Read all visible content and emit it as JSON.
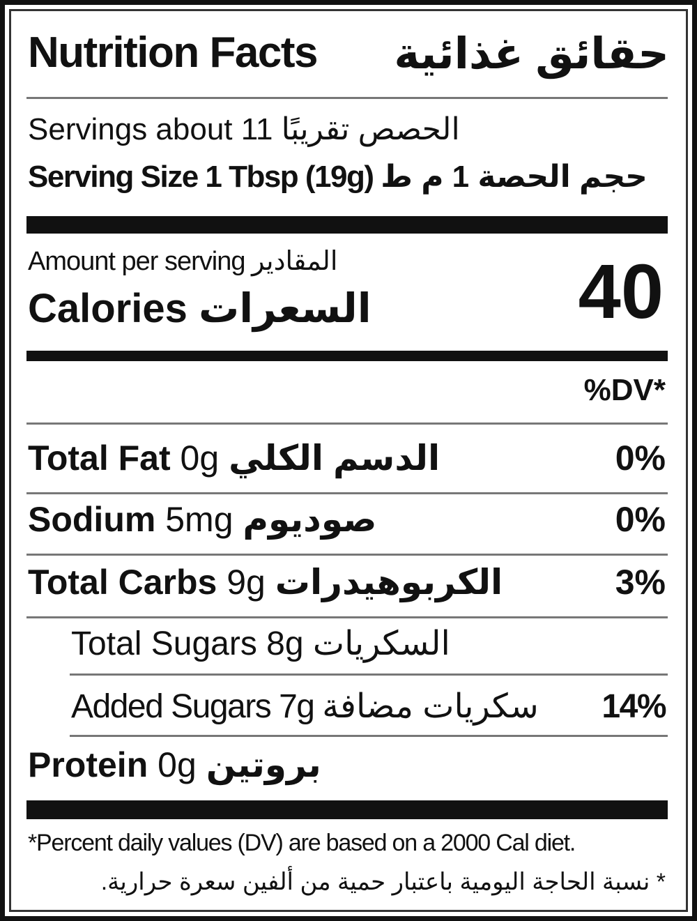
{
  "title": {
    "en": "Nutrition Facts",
    "ar": "حقائق غذائية"
  },
  "servings": {
    "en": "Servings about 11",
    "ar": "الحصص تقريبًا"
  },
  "serving_size": {
    "en": "Serving Size 1 Tbsp (19g)",
    "ar": "حجم الحصة 1 م ط"
  },
  "amount_per_serving": {
    "en": "Amount per serving",
    "ar": "المقادير"
  },
  "calories": {
    "en": "Calories",
    "ar": "السعرات",
    "value": "40"
  },
  "dv_header": "%DV*",
  "nutrients": [
    {
      "en": "Total Fat",
      "amount": "0g",
      "ar": "الدسم الكلي",
      "dv": "0%"
    },
    {
      "en": "Sodium",
      "amount": "5mg",
      "ar": "صوديوم",
      "dv": "0%"
    },
    {
      "en": "Total Carbs",
      "amount": "9g",
      "ar": "الكربوهيدرات",
      "dv": "3%"
    },
    {
      "en": "Total Sugars",
      "amount": "8g",
      "ar": "السكريات",
      "dv": ""
    },
    {
      "en": "Added Sugars",
      "amount": "7g",
      "ar": "سكريات مضافة",
      "dv": "14%"
    },
    {
      "en": "Protein",
      "amount": "0g",
      "ar": "بروتين",
      "dv": ""
    }
  ],
  "footnote": {
    "en": "*Percent daily values (DV)  are based on a 2000 Cal diet.",
    "ar": "* نسبة الحاجة اليومية باعتبار حمية من ألفين سعرة حرارية."
  }
}
